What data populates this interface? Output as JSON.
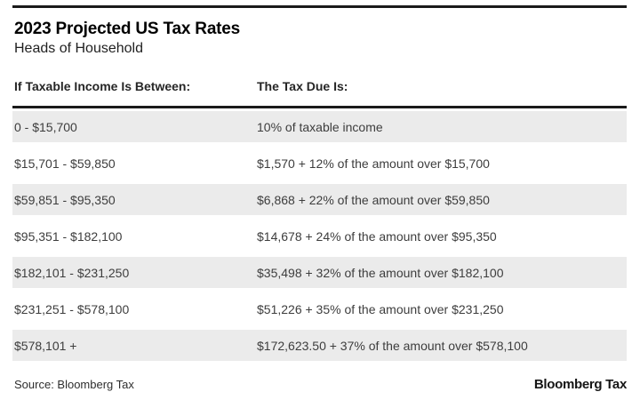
{
  "header": {
    "title": "2023 Projected US Tax Rates",
    "subtitle": "Heads of Household"
  },
  "chart_data": {
    "type": "table",
    "title": "2023 Projected US Tax Rates",
    "subtitle": "Heads of Household",
    "columns": [
      "If Taxable Income Is Between:",
      "The Tax Due Is:"
    ],
    "rows": [
      [
        "0 - $15,700",
        "10% of taxable income"
      ],
      [
        "$15,701 - $59,850",
        "$1,570 + 12% of the amount over $15,700"
      ],
      [
        "$59,851 - $95,350",
        "$6,868 + 22% of the amount over $59,850"
      ],
      [
        "$95,351 - $182,100",
        "$14,678 + 24% of the amount over $95,350"
      ],
      [
        "$182,101 - $231,250",
        "$35,498 + 32% of the amount over $182,100"
      ],
      [
        "$231,251 - $578,100",
        "$51,226 + 35% of the amount over $231,250"
      ],
      [
        "$578,101 +",
        "$172,623.50 + 37% of the amount over $578,100"
      ]
    ],
    "bracket_rates_percent": [
      10,
      12,
      22,
      24,
      32,
      35,
      37
    ],
    "layout": {
      "alternating_rows": true,
      "row_alt_color": "#ebebeb",
      "rule_color": "#1a1a1a",
      "grid": false
    }
  },
  "footer": {
    "source": "Source: Bloomberg Tax",
    "logo": "Bloomberg Tax"
  }
}
